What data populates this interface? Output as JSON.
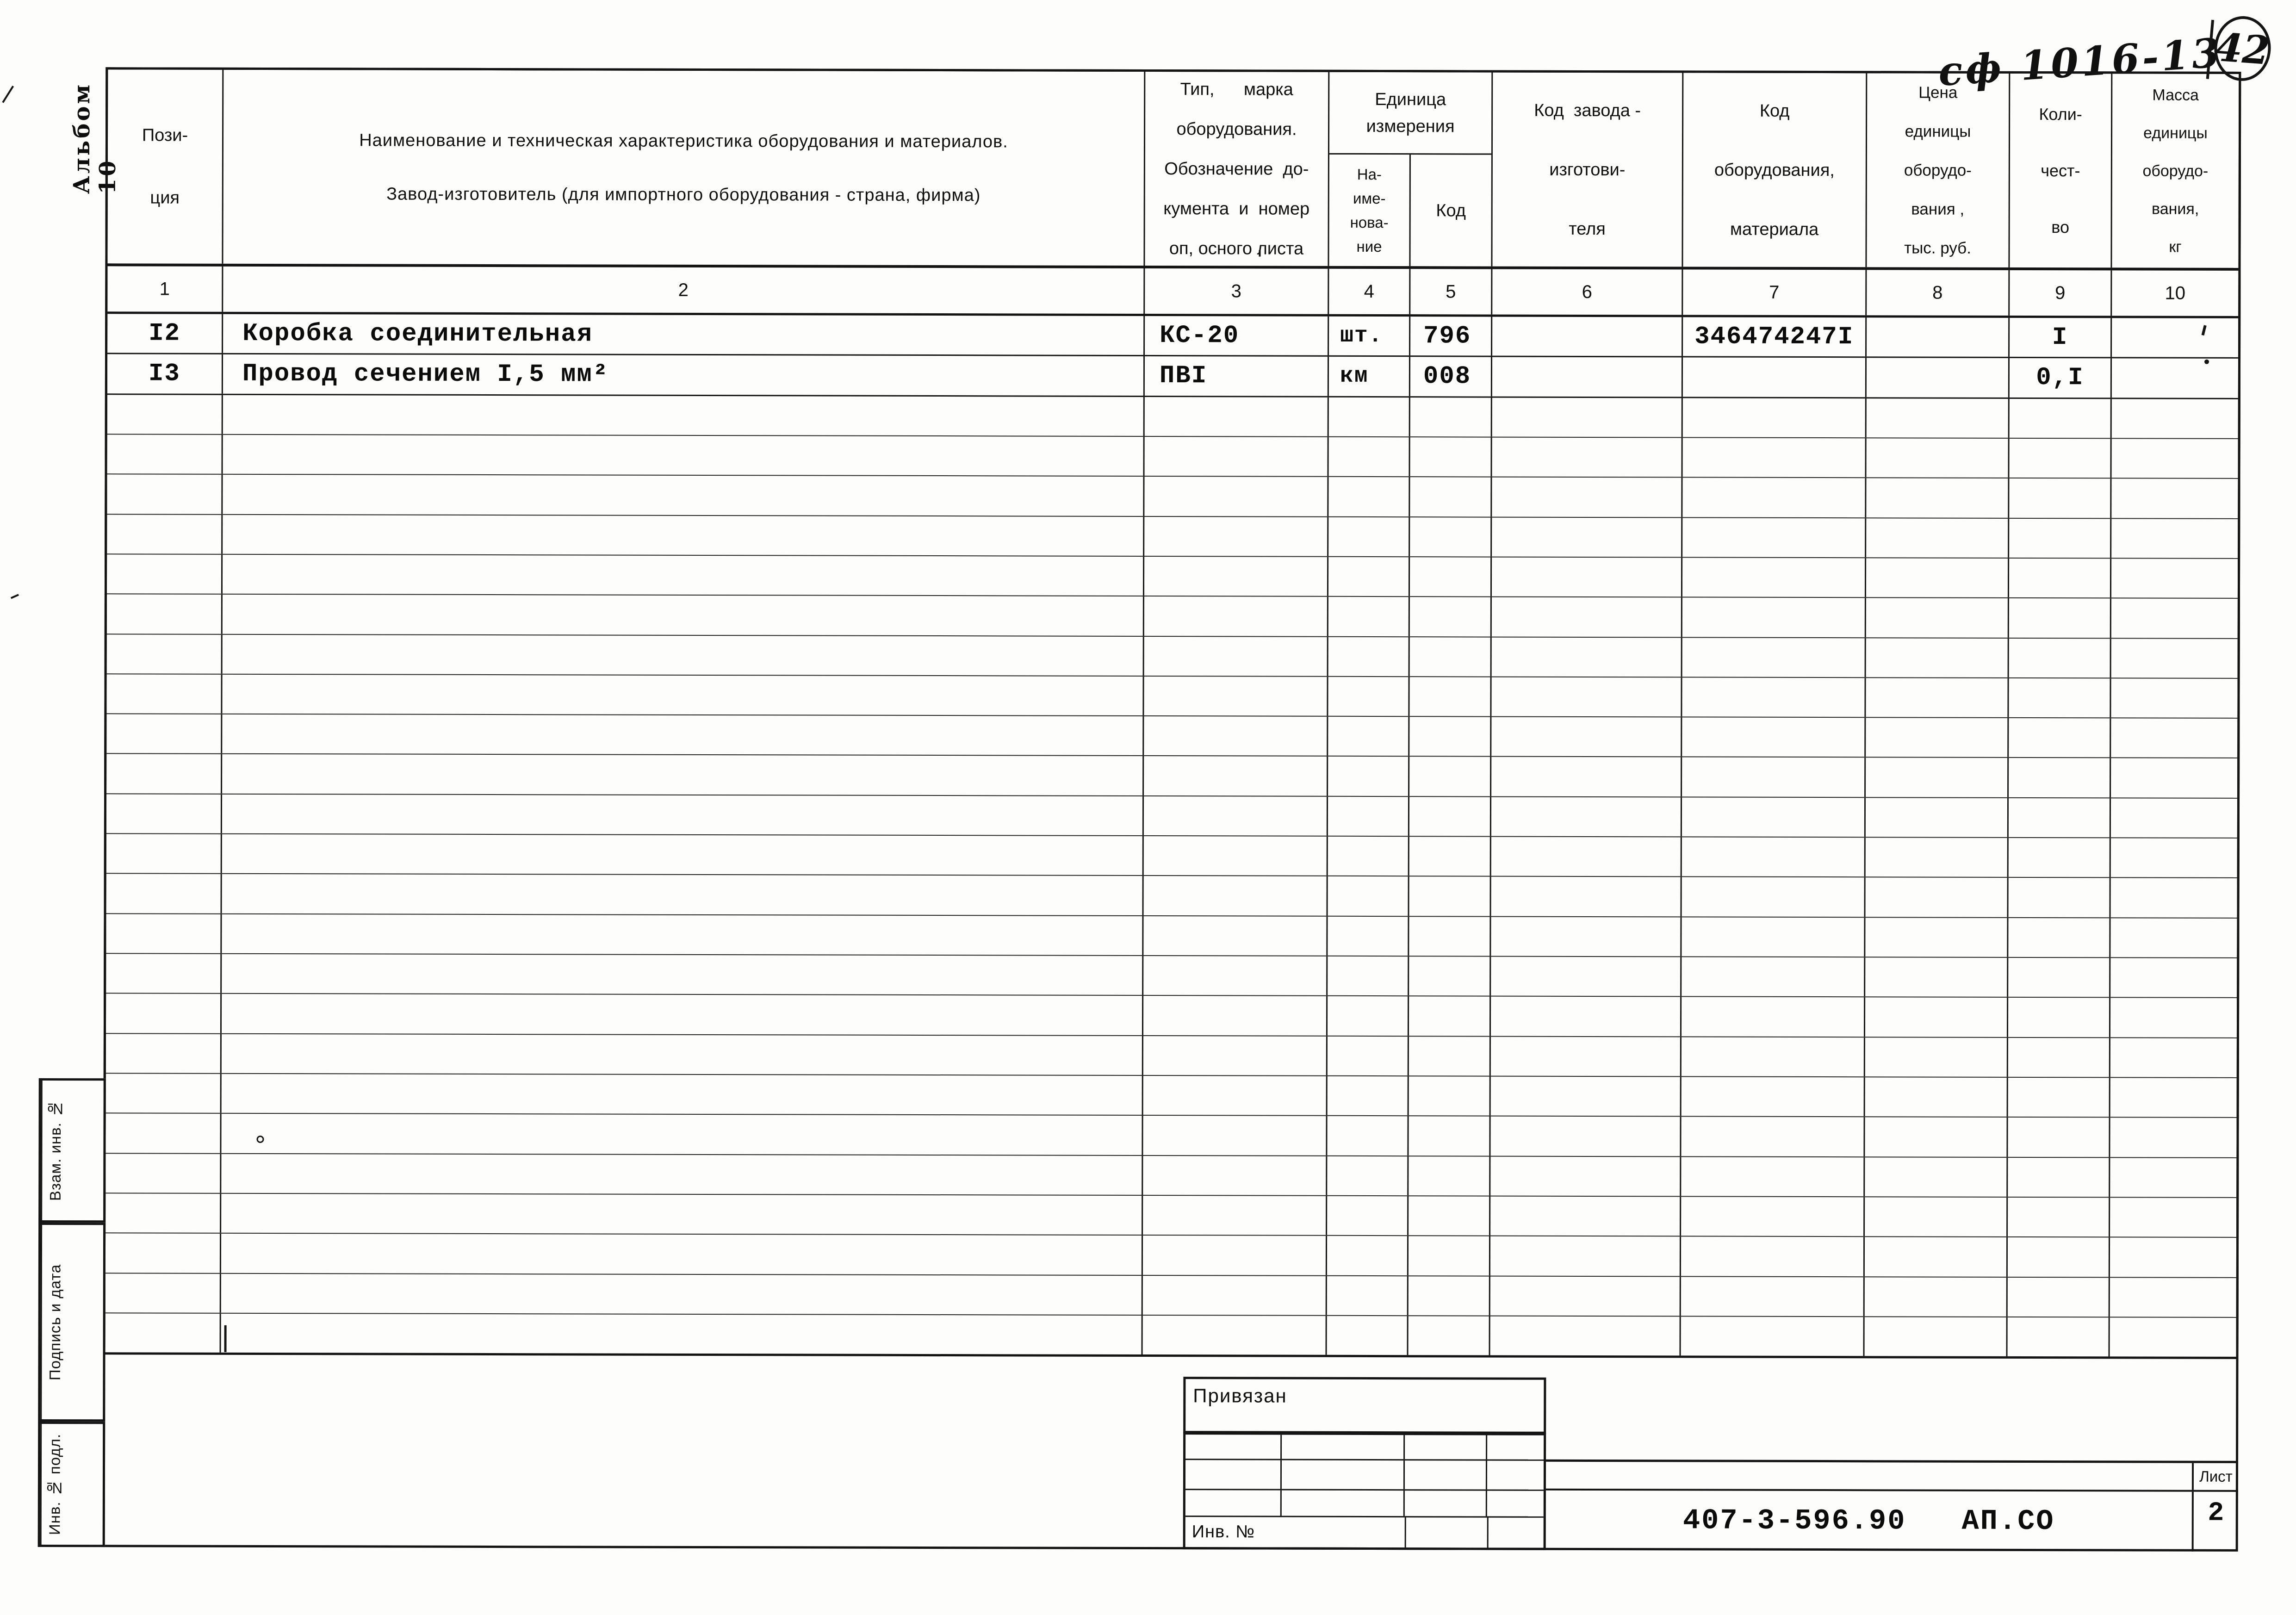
{
  "page": {
    "ref_handwritten": "сф 1016-13",
    "sheet_circle_number": "42",
    "album_vertical_label": "Альбом 10"
  },
  "table": {
    "header": {
      "c1": "Пози-\nция",
      "c2_line1": "Наименование и техническая характеристика  оборудования и материалов.",
      "c2_line2": "Завод-изготовитель  (для импортного оборудования -  страна, фирма)",
      "c3": "Тип,      марка\nоборудования.\nОбозначение  до-\nкумента  и  номер\nоп, осного листа",
      "unit_group": "Единица\nизмерения",
      "c4": "На-\nиме-\nнова-\nние",
      "c5": "Код",
      "c6": "Код  завода -\nизготови-\nтеля",
      "c7": "Код\nоборудования,\nматериала",
      "c8": "Цена\nединицы\nоборудо-\nвания ,\nтыс. руб.",
      "c9": "Коли-\nчест-\nво",
      "c10": "Масса\nединицы\nоборудо-\nвания,\nкг"
    },
    "col_numbers": [
      "1",
      "2",
      "3",
      "4",
      "5",
      "6",
      "7",
      "8",
      "9",
      "10"
    ],
    "rows": [
      {
        "pos": "I2",
        "name": "Коробка соединительная",
        "type": "КС-20",
        "unit": "шт.",
        "unit_code": "796",
        "factory_code": "",
        "equip_code": "346474247I",
        "price": "",
        "qty": "I",
        "mass": ""
      },
      {
        "pos": "I3",
        "name": "Провод сечением I,5 мм²",
        "type": "ПВI",
        "unit": "км",
        "unit_code": "008",
        "factory_code": "",
        "equip_code": "",
        "price": "",
        "qty": "0,I",
        "mass": ""
      }
    ],
    "empty_rows": 24
  },
  "margin_stamps": {
    "box1": "Взам. инв. №",
    "box2": "Подпись и дата",
    "box3": "Инв. № подл."
  },
  "title_block": {
    "bind_label": "Привязан",
    "inv_label": "Инв. №",
    "doc_number": "407-3-596.90",
    "doc_code": "АП.СО",
    "sheet_label": "Лист",
    "sheet_number": "2"
  }
}
